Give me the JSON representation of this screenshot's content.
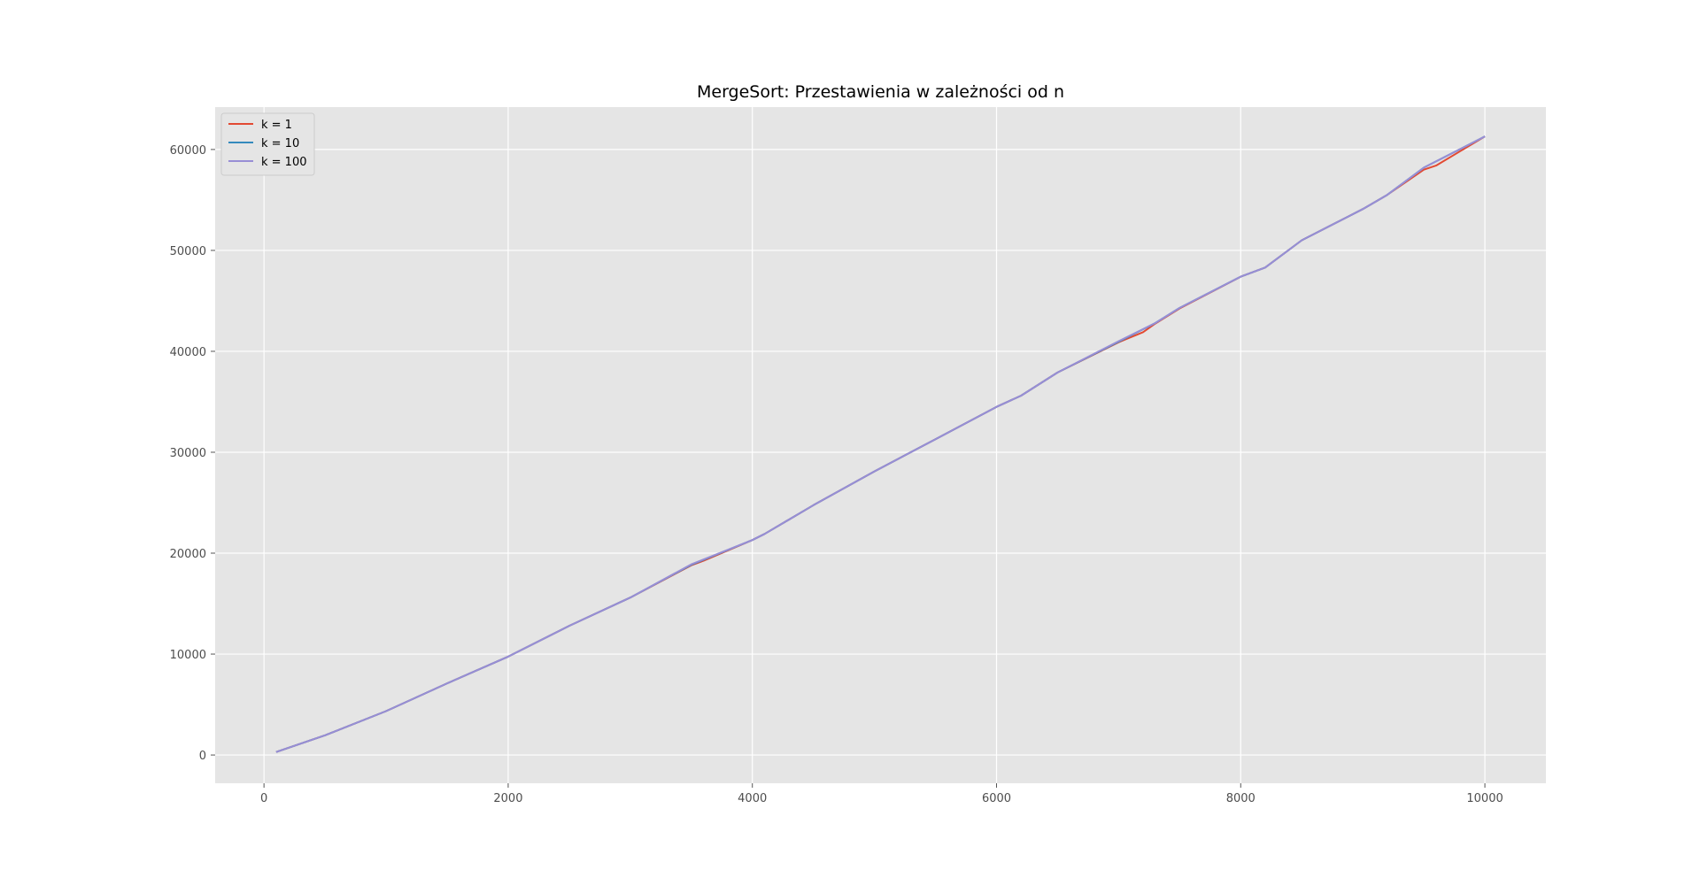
{
  "chart_data": {
    "type": "line",
    "title": "MergeSort: Przestawienia w zależności od n",
    "xlabel": "",
    "ylabel": "",
    "xlim": [
      -400,
      10500
    ],
    "ylim": [
      -2800,
      64200
    ],
    "x_ticks": [
      0,
      2000,
      4000,
      6000,
      8000,
      10000
    ],
    "x_tick_labels": [
      "0",
      "2000",
      "4000",
      "6000",
      "8000",
      "10000"
    ],
    "y_ticks": [
      0,
      10000,
      20000,
      30000,
      40000,
      50000,
      60000
    ],
    "y_tick_labels": [
      "0",
      "10000",
      "20000",
      "30000",
      "40000",
      "50000",
      "60000"
    ],
    "grid": true,
    "legend_position": "top-left",
    "style": "ggplot",
    "colors": {
      "plot_background": "#e5e5e5",
      "grid": "#ffffff",
      "tick_text": "#4d4d4d"
    },
    "series": [
      {
        "name": "k = 1",
        "color": "#e24a33",
        "x": [
          100,
          500,
          1000,
          1500,
          2000,
          2500,
          3000,
          3500,
          3600,
          4000,
          4100,
          4500,
          5000,
          5500,
          6000,
          6200,
          6500,
          7000,
          7200,
          7300,
          7500,
          8000,
          8200,
          8500,
          9000,
          9200,
          9500,
          9600,
          10000
        ],
        "y": [
          300,
          1950,
          4350,
          7100,
          9750,
          12800,
          15600,
          18800,
          19250,
          21300,
          21900,
          24750,
          28100,
          31300,
          34500,
          35600,
          37900,
          40900,
          41900,
          42750,
          44250,
          47400,
          48300,
          51000,
          54100,
          55500,
          58000,
          58400,
          61300
        ]
      },
      {
        "name": "k = 10",
        "color": "#348abd",
        "x": [
          100,
          500,
          1000,
          1500,
          2000,
          2500,
          3000,
          3500,
          4000,
          4100,
          4500,
          5000,
          5500,
          6000,
          6200,
          6500,
          7000,
          7300,
          7500,
          8000,
          8200,
          8500,
          9000,
          9200,
          9500,
          10000
        ],
        "y": [
          300,
          1950,
          4350,
          7100,
          9750,
          12800,
          15600,
          18850,
          21300,
          21900,
          24750,
          28100,
          31300,
          34500,
          35600,
          37900,
          40950,
          42800,
          44300,
          47400,
          48300,
          51000,
          54100,
          55500,
          58200,
          61300
        ]
      },
      {
        "name": "k = 100",
        "color": "#988ed5",
        "x": [
          100,
          500,
          1000,
          1500,
          2000,
          2500,
          3000,
          3500,
          4000,
          4100,
          4500,
          5000,
          5500,
          6000,
          6200,
          6500,
          7000,
          7300,
          7500,
          8000,
          8200,
          8500,
          9000,
          9200,
          9500,
          10000
        ],
        "y": [
          300,
          1950,
          4350,
          7100,
          9750,
          12800,
          15600,
          18900,
          21300,
          21900,
          24750,
          28100,
          31300,
          34500,
          35600,
          37900,
          41000,
          42800,
          44300,
          47400,
          48300,
          51000,
          54100,
          55500,
          58200,
          61300
        ]
      }
    ]
  }
}
